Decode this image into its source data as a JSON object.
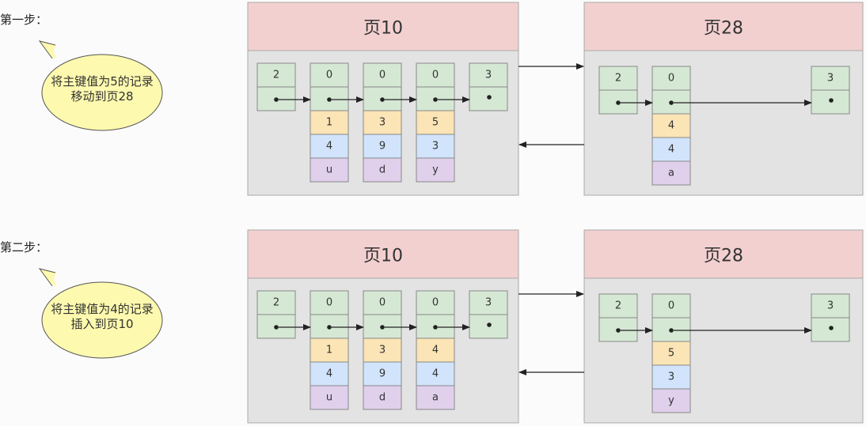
{
  "colors": {
    "page_header": "#f3d0d0",
    "page_body": "#e3e3e3",
    "header_field": "#d5e8d4",
    "key_field": "#fbe4b5",
    "col2_field": "#d1e4fb",
    "col3_field": "#e0d0ec",
    "bubble": "#fdf9ae"
  },
  "steps": [
    {
      "label": "第一步：",
      "bubble": [
        "将主键值为5的记录",
        "移动到页28"
      ],
      "left_page": {
        "title": "页10",
        "infimum": "2",
        "supremum": "3",
        "records": [
          {
            "header": "0",
            "key": "1",
            "col2": "4",
            "col3": "u"
          },
          {
            "header": "0",
            "key": "3",
            "col2": "9",
            "col3": "d"
          },
          {
            "header": "0",
            "key": "5",
            "col2": "3",
            "col3": "y"
          }
        ]
      },
      "right_page": {
        "title": "页28",
        "infimum": "2",
        "supremum": "3",
        "records": [
          {
            "header": "0",
            "key": "4",
            "col2": "4",
            "col3": "a"
          }
        ]
      }
    },
    {
      "label": "第二步：",
      "bubble": [
        "将主键值为4的记录",
        "插入到页10"
      ],
      "left_page": {
        "title": "页10",
        "infimum": "2",
        "supremum": "3",
        "records": [
          {
            "header": "0",
            "key": "1",
            "col2": "4",
            "col3": "u"
          },
          {
            "header": "0",
            "key": "3",
            "col2": "9",
            "col3": "d"
          },
          {
            "header": "0",
            "key": "4",
            "col2": "4",
            "col3": "a"
          }
        ]
      },
      "right_page": {
        "title": "页28",
        "infimum": "2",
        "supremum": "3",
        "records": [
          {
            "header": "0",
            "key": "5",
            "col2": "3",
            "col3": "y"
          }
        ]
      }
    }
  ]
}
